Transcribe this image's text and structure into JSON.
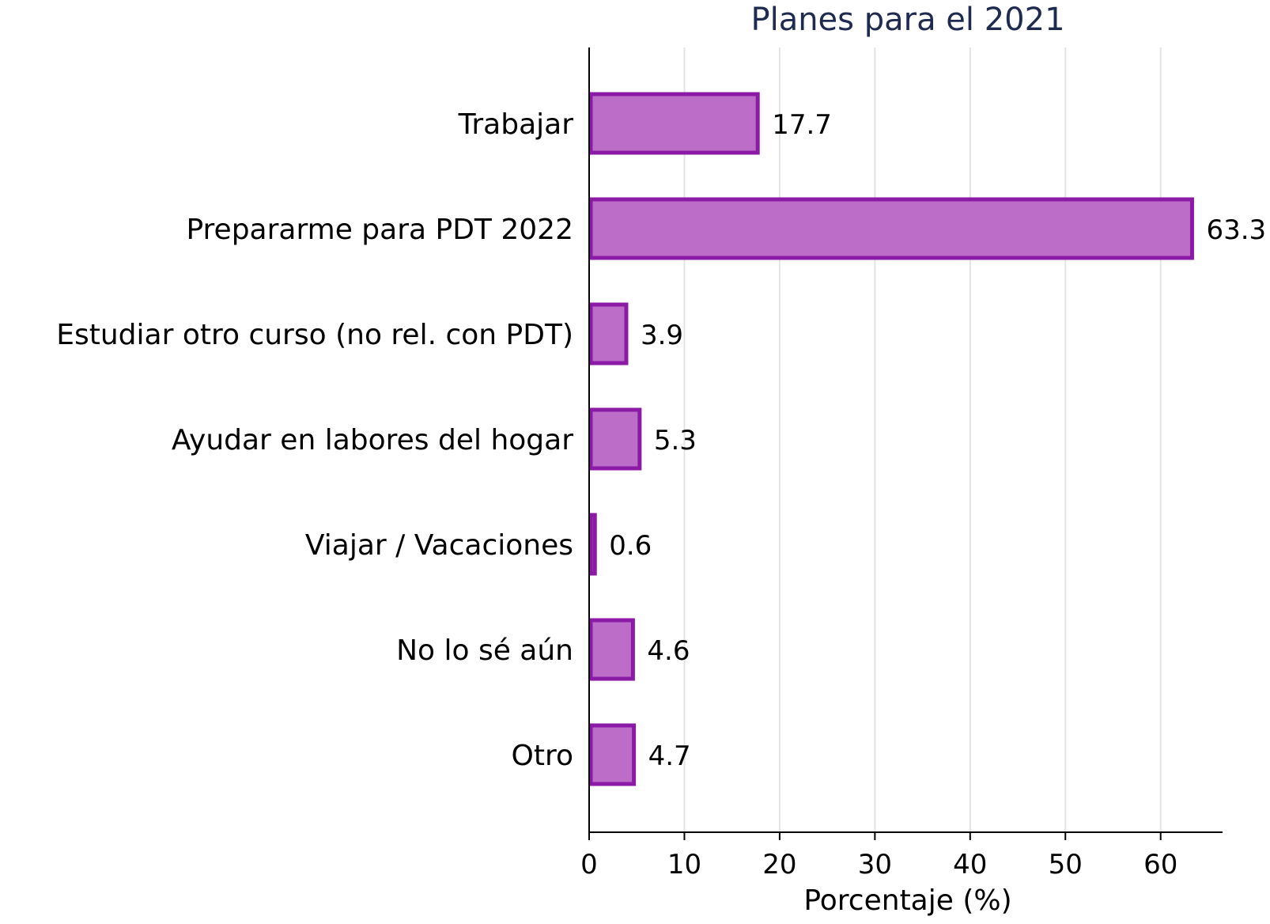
{
  "chart_data": {
    "type": "bar",
    "orientation": "horizontal",
    "title": "Planes para el 2021",
    "xlabel": "Porcentaje (%)",
    "ylabel": "",
    "categories": [
      "Trabajar",
      "Prepararme para PDT 2022",
      "Estudiar otro curso (no rel. con PDT)",
      "Ayudar en labores del hogar",
      "Viajar / Vacaciones",
      "No lo sé aún",
      "Otro"
    ],
    "values": [
      17.7,
      63.3,
      3.9,
      5.3,
      0.6,
      4.6,
      4.7
    ],
    "value_labels": [
      "17.7",
      "63.3",
      "3.9",
      "5.3",
      "0.6",
      "4.6",
      "4.7"
    ],
    "xlim": [
      0,
      66.5
    ],
    "xticks": [
      0,
      10,
      20,
      30,
      40,
      50,
      60
    ],
    "xtick_labels": [
      "0",
      "10",
      "20",
      "30",
      "40",
      "50",
      "60"
    ],
    "grid": "vertical",
    "colors": {
      "bar_fill": "#bc6dc8",
      "bar_stroke": "#8b1aa6",
      "title": "#1e2a4f"
    }
  }
}
